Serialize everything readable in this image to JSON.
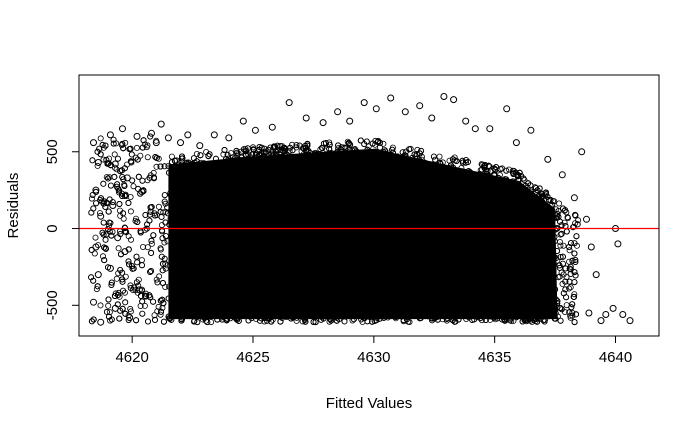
{
  "chart_data": {
    "type": "scatter",
    "xlabel": "Fitted Values",
    "ylabel": "Residuals",
    "xlim": [
      4617.8,
      4641.8
    ],
    "ylim": [
      -700,
      1000
    ],
    "xticks": [
      4620,
      4625,
      4630,
      4635,
      4640
    ],
    "xtick_labels": [
      "4620",
      "4625",
      "4630",
      "4635",
      "4640"
    ],
    "yticks": [
      -500,
      0,
      500
    ],
    "ytick_labels": [
      "-500",
      "0",
      "500"
    ],
    "point_style": "open-circle",
    "point_color": "#000000",
    "reference_line": {
      "y": 0,
      "color": "#ff0000"
    },
    "grid": false,
    "legend": "none",
    "series": [
      {
        "values_note_free": true,
        "points": [
          [
            4618.4,
            560
          ],
          [
            4618.6,
            430
          ],
          [
            4618.5,
            250
          ],
          [
            4618.7,
            80
          ],
          [
            4618.5,
            -120
          ],
          [
            4618.6,
            -300
          ],
          [
            4618.4,
            -480
          ],
          [
            4618.7,
            -610
          ],
          [
            4619.1,
            610
          ],
          [
            4619.3,
            420
          ],
          [
            4619.2,
            150
          ],
          [
            4619.4,
            -60
          ],
          [
            4619.1,
            -260
          ],
          [
            4619.3,
            -520
          ],
          [
            4619.6,
            650
          ],
          [
            4619.8,
            330
          ],
          [
            4619.7,
            -150
          ],
          [
            4619.9,
            -580
          ],
          [
            4620.2,
            600
          ],
          [
            4620.4,
            240
          ],
          [
            4620.3,
            -400
          ],
          [
            4620.8,
            620
          ],
          [
            4621.0,
            560
          ],
          [
            4621.2,
            680
          ],
          [
            4621.5,
            590
          ],
          [
            4622.0,
            560
          ],
          [
            4622.3,
            610
          ],
          [
            4622.8,
            540
          ],
          [
            4623.4,
            610
          ],
          [
            4624.0,
            590
          ],
          [
            4624.6,
            700
          ],
          [
            4625.1,
            640
          ],
          [
            4625.8,
            660
          ],
          [
            4626.5,
            820
          ],
          [
            4627.2,
            720
          ],
          [
            4627.9,
            690
          ],
          [
            4628.5,
            760
          ],
          [
            4629.0,
            700
          ],
          [
            4629.6,
            820
          ],
          [
            4630.1,
            780
          ],
          [
            4630.7,
            850
          ],
          [
            4631.3,
            760
          ],
          [
            4631.9,
            800
          ],
          [
            4632.4,
            720
          ],
          [
            4632.9,
            860
          ],
          [
            4633.3,
            840
          ],
          [
            4633.8,
            700
          ],
          [
            4634.2,
            650
          ],
          [
            4634.8,
            650
          ],
          [
            4635.5,
            780
          ],
          [
            4635.9,
            560
          ],
          [
            4636.5,
            640
          ],
          [
            4637.2,
            450
          ],
          [
            4637.8,
            350
          ],
          [
            4638.3,
            200
          ],
          [
            4638.6,
            500
          ],
          [
            4638.8,
            60
          ],
          [
            4639.0,
            -120
          ],
          [
            4639.2,
            -300
          ],
          [
            4638.9,
            -550
          ],
          [
            4639.4,
            -600
          ],
          [
            4639.6,
            -560
          ],
          [
            4639.9,
            -520
          ],
          [
            4640.0,
            0
          ],
          [
            4640.1,
            -100
          ],
          [
            4640.3,
            -560
          ],
          [
            4640.6,
            -600
          ]
        ]
      }
    ]
  }
}
